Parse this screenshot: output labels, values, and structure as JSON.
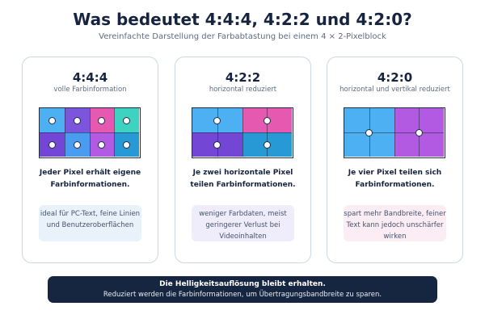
{
  "header": {
    "title": "Was bedeutet 4:4:4, 4:2:2 und 4:2:0?",
    "subtitle": "Vereinfachte Darstellung der Farbabtastung bei einem 4 × 2-Pixelblock"
  },
  "cards": [
    {
      "title": "4:4:4",
      "subtitle": "volle Farbinformation",
      "description": "Jeder Pixel erhält eigene Farbinformationen.",
      "note": "ideal für PC-Text, feine Linien und Benutzeroberflächen",
      "note_color": "#e9f1fb",
      "block_colors": [
        "#4db0f2",
        "#7b55dc",
        "#e659b1",
        "#3ed3c1",
        "#7346d6",
        "#4a9cf0",
        "#b35ae3",
        "#279ad6"
      ]
    },
    {
      "title": "4:2:2",
      "subtitle": "horizontal reduziert",
      "description": "Je zwei horizontale Pixel teilen Farbinformationen.",
      "note": "weniger Farbdaten, meist geringerer Verlust bei Videoinhalten",
      "note_color": "#efedfb",
      "block_colors": [
        "#4db0f2",
        "#e659b1",
        "#7346d6",
        "#279ad6"
      ]
    },
    {
      "title": "4:2:0",
      "subtitle": "horizontal und vertikal reduziert",
      "description": "Je vier Pixel teilen sich Farbinformationen.",
      "note": "spart mehr Bandbreite, feiner Text kann jedoch unschärfer wirken",
      "note_color": "#fcedf4",
      "block_colors": [
        "#4db0f2",
        "#b35ae3"
      ]
    }
  ],
  "footer": {
    "title": "Die Helligkeitsauflösung bleibt erhalten.",
    "text": "Reduziert werden die Farbinformationen, um Übertragungsbandbreite zu sparen."
  }
}
